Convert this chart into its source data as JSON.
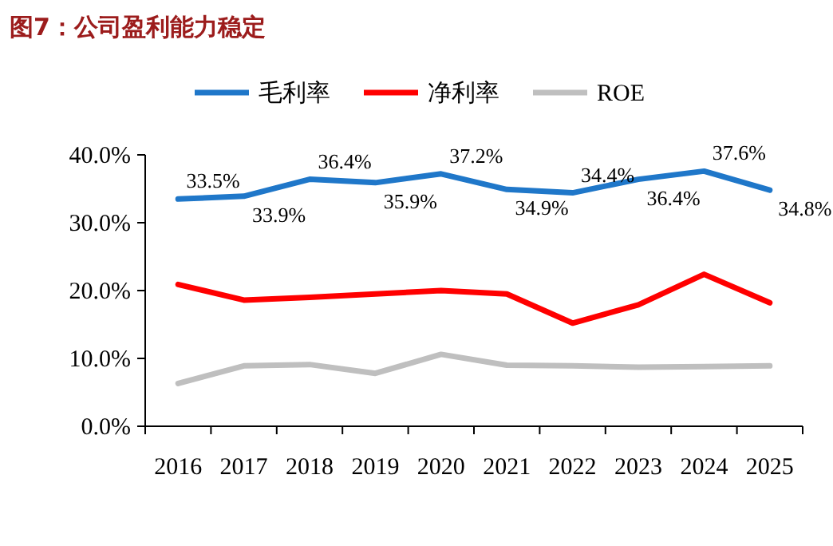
{
  "chart_data": {
    "type": "line",
    "title": "图7：公司盈利能力稳定",
    "categories": [
      "2016",
      "2017",
      "2018",
      "2019",
      "2020",
      "2021",
      "2022",
      "2023",
      "2024",
      "2025"
    ],
    "series": [
      {
        "name": "毛利率",
        "color": "#1f77c9",
        "values": [
          33.5,
          33.9,
          36.4,
          35.9,
          37.2,
          34.9,
          34.4,
          36.4,
          37.6,
          34.8
        ],
        "value_labels": [
          "33.5%",
          "33.9%",
          "36.4%",
          "35.9%",
          "37.2%",
          "34.9%",
          "34.4%",
          "36.4%",
          "37.6%",
          "34.8%"
        ]
      },
      {
        "name": "净利率",
        "color": "#ff0000",
        "values": [
          20.9,
          18.6,
          19.0,
          19.5,
          20.0,
          19.5,
          15.2,
          17.9,
          22.4,
          18.2
        ]
      },
      {
        "name": "ROE",
        "color": "#bfbfbf",
        "values": [
          6.3,
          8.9,
          9.1,
          7.8,
          10.6,
          9.0,
          8.9,
          8.7,
          8.8,
          8.9
        ]
      }
    ],
    "ylim": [
      0,
      40
    ],
    "yticks": [
      {
        "value": 0,
        "label": "0.0%"
      },
      {
        "value": 10,
        "label": "10.0%"
      },
      {
        "value": 20,
        "label": "20.0%"
      },
      {
        "value": 30,
        "label": "30.0%"
      },
      {
        "value": 40,
        "label": "40.0%"
      }
    ],
    "legend": "top",
    "grid": false,
    "marker": "none",
    "line_style": "solid"
  }
}
